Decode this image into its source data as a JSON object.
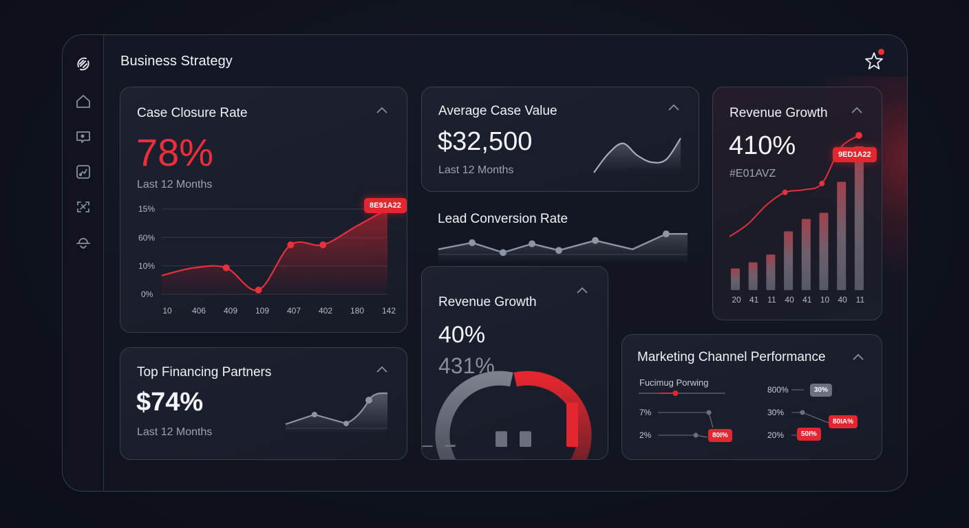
{
  "app": {
    "title": "Business Strategy",
    "accent_color": "#E3262F",
    "sidebar": [
      {
        "name": "logo",
        "icon": "logo-icon"
      },
      {
        "name": "home",
        "icon": "home-icon"
      },
      {
        "name": "messages",
        "icon": "chat-icon"
      },
      {
        "name": "analytics",
        "icon": "chart-icon"
      },
      {
        "name": "integrations",
        "icon": "link-icon"
      },
      {
        "name": "notifications",
        "icon": "bell-icon"
      }
    ],
    "favorite_icon": "star-icon",
    "favorite_has_badge": true
  },
  "cards": {
    "case_closure": {
      "title": "Case Closure Rate",
      "value": "78%",
      "subtitle": "Last 12 Months",
      "tag": "8E91A22"
    },
    "avg_case": {
      "title": "Average Case Value",
      "value": "$32,500",
      "subtitle": "Last 12 Months"
    },
    "lead_conversion": {
      "title": "Lead Conversion Rate"
    },
    "revenue_bar": {
      "title": "Revenue Growth",
      "value": "410%",
      "subtitle": "#E01AVZ",
      "tag": "9ED1A22"
    },
    "top_financing": {
      "title": "Top Financing Partners",
      "value": "$74%",
      "subtitle": "Last 12 Months"
    },
    "revenue_gauge": {
      "title": "Revenue Growth",
      "value": "40%",
      "secondary": "431%"
    },
    "marketing": {
      "title": "Marketing Channel Performance",
      "legend": "Fucimug Porwing",
      "slider_value": 0.35,
      "left_rows": [
        {
          "label": "7%",
          "chip": null
        },
        {
          "label": "2%",
          "chip": "80I%"
        }
      ],
      "right_rows": [
        {
          "label": "800%",
          "chip": "30%",
          "chip_style": "grey"
        },
        {
          "label": "30%",
          "chip": "80IA%",
          "chip_style": "red"
        },
        {
          "label": "20%",
          "chip": "50I%",
          "chip_style": "red"
        }
      ]
    }
  },
  "chart_data": [
    {
      "type": "area",
      "title": "Case Closure Rate",
      "y_tick_labels": [
        "15%",
        "60%",
        "10%",
        "0%"
      ],
      "x_tick_labels": [
        "10",
        "406",
        "409",
        "109",
        "407",
        "402",
        "180",
        "142"
      ],
      "values": [
        0.22,
        0.31,
        0.31,
        0.05,
        0.58,
        0.58,
        0.79,
        1.0
      ],
      "marked_points": [
        2,
        3,
        4,
        5
      ],
      "ylim": [
        0,
        1
      ],
      "grid": true
    },
    {
      "type": "area",
      "title": "Average Case Value sparkline",
      "values": [
        0.0,
        0.55,
        0.85,
        0.5,
        0.3,
        0.38,
        1.0
      ]
    },
    {
      "type": "line",
      "title": "Lead Conversion Rate",
      "values": [
        0.2,
        0.5,
        0.05,
        0.45,
        0.15,
        0.6,
        0.2,
        0.9,
        0.9
      ],
      "marked_points": [
        1,
        2,
        3,
        4,
        5,
        7
      ]
    },
    {
      "type": "bar",
      "title": "Revenue Growth",
      "categories": [
        "20",
        "41",
        "11",
        "40",
        "41",
        "10",
        "40",
        "11"
      ],
      "values": [
        0.14,
        0.18,
        0.23,
        0.38,
        0.46,
        0.5,
        0.7,
        0.93
      ],
      "line_values": [
        0.2,
        0.3,
        0.45,
        0.55,
        0.57,
        0.62,
        0.9,
        1.0
      ],
      "marked_points": [
        3,
        5,
        7
      ]
    },
    {
      "type": "area",
      "title": "Top Financing Partners sparkline",
      "values": [
        0.1,
        0.38,
        0.12,
        0.8,
        1.0
      ],
      "marked_points": [
        1,
        2,
        3
      ]
    },
    {
      "type": "gauge",
      "title": "Revenue Growth gauge",
      "grey_fraction": 0.5,
      "red_fraction": 0.5,
      "bars": [
        0.02,
        0.04,
        0.3,
        0.3,
        0.85
      ]
    }
  ]
}
